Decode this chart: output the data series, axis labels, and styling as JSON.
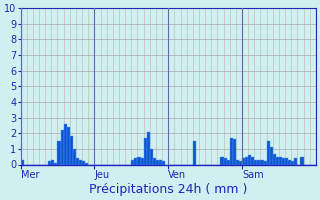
{
  "title": "Précipitations 24h ( mm )",
  "xlabel": "Précipitations 24h ( mm )",
  "background_color": "#cff0f0",
  "bar_color": "#1155cc",
  "bar_edge_color": "#4499ff",
  "ylim": [
    0,
    10
  ],
  "yticks": [
    0,
    1,
    2,
    3,
    4,
    5,
    6,
    7,
    8,
    9,
    10
  ],
  "day_labels": [
    "Mer",
    "Jeu",
    "Ven",
    "Sam"
  ],
  "n_bars": 96,
  "values": [
    0.3,
    0.0,
    0.0,
    0.0,
    0.0,
    0.0,
    0.0,
    0.0,
    0.0,
    0.2,
    0.3,
    0.1,
    1.5,
    2.2,
    2.6,
    2.4,
    1.8,
    1.0,
    0.4,
    0.3,
    0.2,
    0.1,
    0.0,
    0.0,
    0.0,
    0.0,
    0.0,
    0.0,
    0.0,
    0.0,
    0.0,
    0.0,
    0.0,
    0.0,
    0.0,
    0.0,
    0.3,
    0.4,
    0.5,
    0.4,
    1.7,
    2.1,
    1.0,
    0.4,
    0.3,
    0.3,
    0.2,
    0.0,
    0.0,
    0.0,
    0.0,
    0.0,
    0.0,
    0.0,
    0.0,
    0.0,
    1.5,
    0.0,
    0.0,
    0.0,
    0.0,
    0.0,
    0.0,
    0.0,
    0.0,
    0.5,
    0.4,
    0.3,
    1.7,
    1.6,
    0.3,
    0.2,
    0.4,
    0.5,
    0.6,
    0.5,
    0.3,
    0.3,
    0.3,
    0.2,
    1.5,
    1.1,
    0.7,
    0.5,
    0.5,
    0.4,
    0.4,
    0.3,
    0.2,
    0.4,
    0.0,
    0.5,
    0.0,
    0.0,
    0.0,
    0.0
  ],
  "h_grid_color": "#aaaaaa",
  "v_grid_color": "#ccbbbb",
  "day_line_color": "#6666aa",
  "label_color": "#2222bb",
  "tick_color": "#2222bb",
  "spine_color": "#2222bb",
  "xlabel_fontsize": 9,
  "ytick_fontsize": 7,
  "xtick_fontsize": 7
}
